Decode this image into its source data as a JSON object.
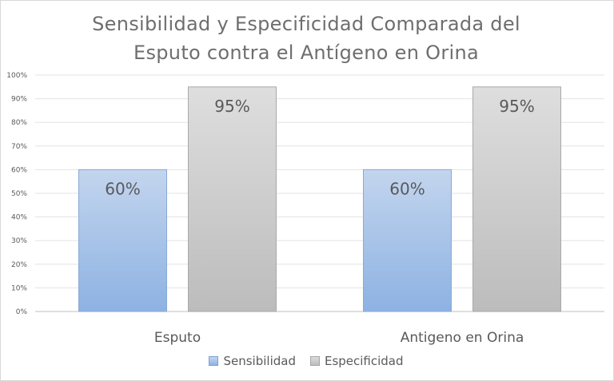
{
  "chart_data": {
    "type": "bar",
    "title_lines": [
      "Sensibilidad y Especificidad Comparada del",
      "Esputo contra el Antígeno en Orina"
    ],
    "categories": [
      "Esputo",
      "Antigeno en Orina"
    ],
    "series": [
      {
        "name": "Sensibilidad",
        "values": [
          60,
          60
        ],
        "labels": [
          "60%",
          "60%"
        ]
      },
      {
        "name": "Especificidad",
        "values": [
          95,
          95
        ],
        "labels": [
          "95%",
          "95%"
        ]
      }
    ],
    "ylim": [
      0,
      100
    ],
    "yticks": [
      "0%",
      "10%",
      "20%",
      "30%",
      "40%",
      "50%",
      "60%",
      "70%",
      "80%",
      "90%",
      "100%"
    ],
    "grid": true,
    "legend_position": "bottom",
    "colors": {
      "Sensibilidad": "#9dbbe6",
      "Especificidad": "#cbcbcb"
    }
  }
}
